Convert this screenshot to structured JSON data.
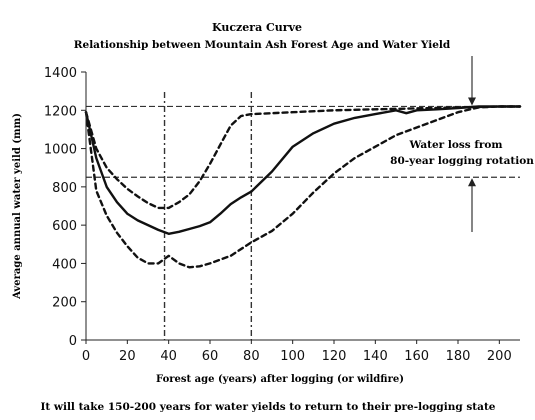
{
  "chart_data": {
    "type": "line",
    "title": "Kuczera Curve",
    "subtitle": "Relationship between Mountain Ash Forest Age and Water Yield",
    "xlabel": "Forest age (years) after logging (or wildfire)",
    "ylabel": "Average annual water yeild (mm)",
    "caption": "It will take 150-200 years for water yields to return to their pre-logging state",
    "annotation": [
      "Water loss from",
      "80-year logging rotation"
    ],
    "xlim": [
      0,
      210
    ],
    "ylim": [
      0,
      1400
    ],
    "x_ticks": [
      "0",
      "20",
      "40",
      "60",
      "80",
      "100",
      "120",
      "140",
      "160",
      "180",
      "200"
    ],
    "y_ticks": [
      "0",
      "200",
      "400",
      "600",
      "800",
      "1000",
      "1200",
      "1400"
    ],
    "grid": false,
    "reference_lines": {
      "x": [
        38,
        80
      ],
      "y": [
        1220,
        850
      ]
    },
    "series": [
      {
        "style": "solid",
        "x": [
          0,
          5,
          10,
          15,
          20,
          25,
          30,
          35,
          40,
          45,
          50,
          55,
          60,
          65,
          70,
          75,
          80,
          90,
          100,
          110,
          120,
          130,
          140,
          150,
          155,
          160,
          170,
          180,
          190,
          200,
          210
        ],
        "y": [
          1190,
          950,
          800,
          720,
          660,
          625,
          600,
          575,
          555,
          565,
          580,
          595,
          615,
          660,
          710,
          745,
          775,
          880,
          1010,
          1080,
          1130,
          1160,
          1180,
          1200,
          1185,
          1200,
          1205,
          1212,
          1220,
          1220,
          1220
        ]
      },
      {
        "style": "dashed",
        "x": [
          0,
          5,
          10,
          15,
          20,
          25,
          30,
          35,
          40,
          45,
          50,
          55,
          60,
          65,
          70,
          75,
          80,
          90,
          100,
          120,
          140,
          160,
          180,
          200,
          210
        ],
        "y": [
          1190,
          1000,
          900,
          840,
          790,
          750,
          715,
          690,
          690,
          720,
          760,
          830,
          920,
          1020,
          1120,
          1170,
          1180,
          1185,
          1190,
          1200,
          1205,
          1210,
          1215,
          1220,
          1220
        ]
      },
      {
        "style": "dashed",
        "x": [
          0,
          5,
          10,
          15,
          20,
          25,
          30,
          35,
          40,
          45,
          50,
          55,
          60,
          70,
          80,
          90,
          100,
          110,
          120,
          130,
          140,
          150,
          160,
          170,
          180,
          190,
          200,
          210
        ],
        "y": [
          1190,
          780,
          650,
          560,
          490,
          430,
          400,
          400,
          440,
          400,
          380,
          385,
          400,
          440,
          510,
          570,
          660,
          770,
          870,
          950,
          1010,
          1070,
          1110,
          1150,
          1190,
          1215,
          1220,
          1220
        ]
      }
    ]
  }
}
